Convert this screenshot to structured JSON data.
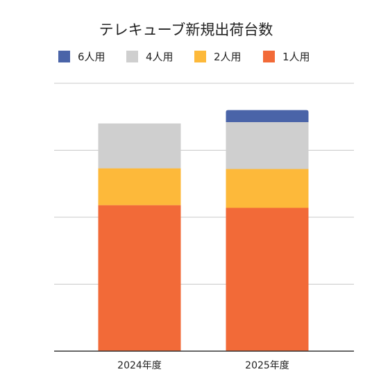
{
  "chart_data": {
    "type": "bar",
    "stacked": true,
    "title": "テレキューブ新規出荷台数",
    "xlabel": "",
    "ylabel": "",
    "categories": [
      "2024年度",
      "2025年度"
    ],
    "series": [
      {
        "name": "1人用",
        "color": "#f26a38",
        "values": [
          218,
          214
        ]
      },
      {
        "name": "2人用",
        "color": "#fdb93a",
        "values": [
          55,
          58
        ]
      },
      {
        "name": "4人用",
        "color": "#cfcfcf",
        "values": [
          67,
          70
        ]
      },
      {
        "name": "6人用",
        "color": "#4a64a8",
        "values": [
          0,
          18
        ]
      }
    ],
    "legend_order": [
      "6人用",
      "4人用",
      "2人用",
      "1人用"
    ],
    "ylim": [
      0,
      400
    ],
    "yticks": [
      0,
      100,
      200,
      300,
      400
    ],
    "ytick_labels_shown": false,
    "grid": true,
    "legend_position": "top"
  }
}
